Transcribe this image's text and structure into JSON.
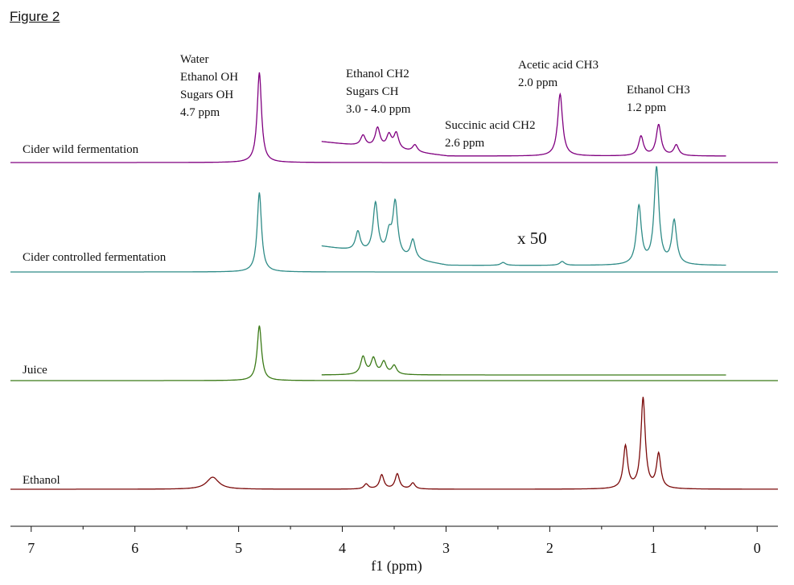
{
  "figure_label": "Figure 2",
  "chart_data": {
    "type": "line",
    "xlabel": "f1 (ppm)",
    "xlim": [
      7.2,
      -0.2
    ],
    "x_ticks": [
      "7",
      "6",
      "5",
      "4",
      "3",
      "2",
      "1",
      "0"
    ],
    "scale_note": "x 50",
    "annotations": {
      "water": [
        "Water",
        "Ethanol OH",
        "Sugars OH",
        "4.7 ppm"
      ],
      "sugars": [
        "Ethanol CH2",
        "Sugars CH",
        "3.0 - 4.0 ppm"
      ],
      "succinic": [
        "Succinic acid CH2",
        "2.6 ppm"
      ],
      "acetic": [
        "Acetic acid CH3",
        "2.0 ppm"
      ],
      "ethanol_ch3": [
        "Ethanol CH3",
        "1.2 ppm"
      ]
    },
    "series": [
      {
        "name": "Cider wild fermentation",
        "color": "#800080",
        "main_peaks": [
          {
            "ppm": 4.8,
            "height": 1.0
          }
        ],
        "zoom_range": [
          4.2,
          0.3
        ],
        "zoom_peaks": [
          {
            "ppm": 3.8,
            "height": 0.12
          },
          {
            "ppm": 3.66,
            "height": 0.22
          },
          {
            "ppm": 3.55,
            "height": 0.15
          },
          {
            "ppm": 3.48,
            "height": 0.18
          },
          {
            "ppm": 3.3,
            "height": 0.08
          },
          {
            "ppm": 1.9,
            "height": 0.7
          },
          {
            "ppm": 1.12,
            "height": 0.22
          },
          {
            "ppm": 0.95,
            "height": 0.35
          },
          {
            "ppm": 0.78,
            "height": 0.12
          }
        ]
      },
      {
        "name": "Cider controlled fermentation",
        "color": "#2E8B87",
        "main_peaks": [
          {
            "ppm": 4.8,
            "height": 0.95
          }
        ],
        "zoom_range": [
          4.2,
          0.3
        ],
        "zoom_peaks": [
          {
            "ppm": 3.85,
            "height": 0.2
          },
          {
            "ppm": 3.68,
            "height": 0.52
          },
          {
            "ppm": 3.55,
            "height": 0.2
          },
          {
            "ppm": 3.49,
            "height": 0.55
          },
          {
            "ppm": 3.32,
            "height": 0.2
          },
          {
            "ppm": 2.45,
            "height": 0.03
          },
          {
            "ppm": 1.88,
            "height": 0.04
          },
          {
            "ppm": 1.14,
            "height": 0.6
          },
          {
            "ppm": 0.97,
            "height": 1.0
          },
          {
            "ppm": 0.8,
            "height": 0.45
          }
        ]
      },
      {
        "name": "Juice",
        "color": "#3B7A17",
        "main_peaks": [
          {
            "ppm": 4.8,
            "height": 0.95
          }
        ],
        "zoom_range": [
          4.2,
          0.3
        ],
        "zoom_peaks": [
          {
            "ppm": 3.8,
            "height": 0.2
          },
          {
            "ppm": 3.7,
            "height": 0.18
          },
          {
            "ppm": 3.6,
            "height": 0.14
          },
          {
            "ppm": 3.5,
            "height": 0.1
          }
        ]
      },
      {
        "name": "Ethanol",
        "color": "#7B0A0A",
        "main_peaks": [
          {
            "ppm": 5.25,
            "height": 0.12
          },
          {
            "ppm": 3.77,
            "height": 0.05
          },
          {
            "ppm": 3.62,
            "height": 0.14
          },
          {
            "ppm": 3.47,
            "height": 0.15
          },
          {
            "ppm": 3.32,
            "height": 0.06
          },
          {
            "ppm": 1.27,
            "height": 0.42
          },
          {
            "ppm": 1.1,
            "height": 0.9
          },
          {
            "ppm": 0.95,
            "height": 0.34
          }
        ]
      }
    ]
  }
}
